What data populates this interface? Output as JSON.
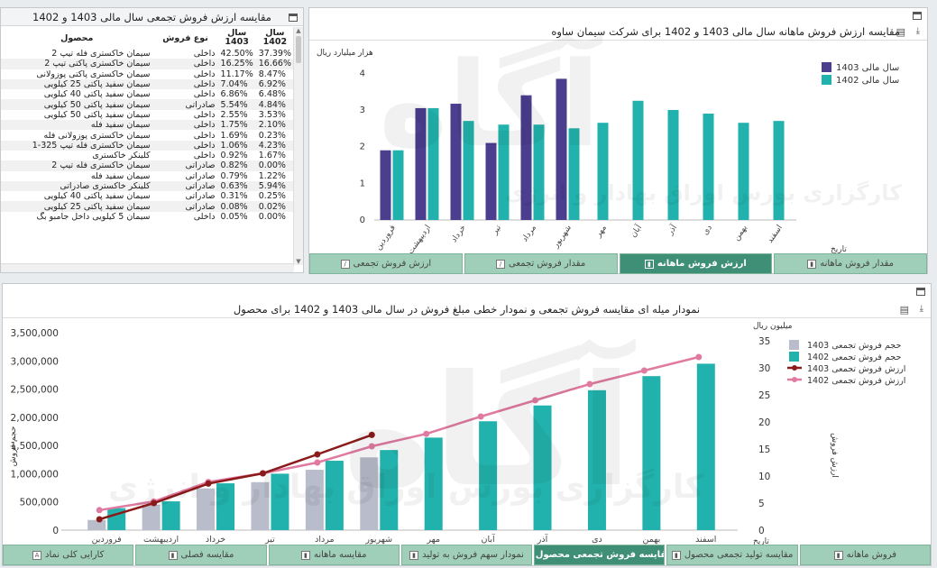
{
  "table_panel": {
    "title": "مقایسه ارزش فروش تجمعی سال مالی 1403 و 1402",
    "columns": {
      "product": "محصول",
      "sale_type": "نوع فروش",
      "year1403": "سال 1403",
      "year1402": "سال 1402"
    },
    "rows": [
      {
        "product": "سیمان خاکستری فله تیپ 2",
        "type": "داخلی",
        "v1403": "42.50%",
        "v1402": "37.39%"
      },
      {
        "product": "سیمان خاکستری پاکتی تیپ 2",
        "type": "داخلی",
        "v1403": "16.25%",
        "v1402": "16.66%"
      },
      {
        "product": "سیمان خاکستری پاکتی پوزولانی",
        "type": "داخلی",
        "v1403": "11.17%",
        "v1402": "8.47%"
      },
      {
        "product": "سیمان سفید پاکتی 25 کیلویی",
        "type": "داخلی",
        "v1403": "7.04%",
        "v1402": "6.92%"
      },
      {
        "product": "سیمان سفید پاکتی 40 کیلویی",
        "type": "داخلی",
        "v1403": "6.86%",
        "v1402": "6.48%"
      },
      {
        "product": "سیمان سفید پاکتی 50 کیلویی",
        "type": "صادراتی",
        "v1403": "5.54%",
        "v1402": "4.84%"
      },
      {
        "product": "سیمان سفید پاکتی 50 کیلویی",
        "type": "داخلی",
        "v1403": "2.55%",
        "v1402": "3.53%"
      },
      {
        "product": "سیمان سفید فله",
        "type": "داخلی",
        "v1403": "1.75%",
        "v1402": "2.10%"
      },
      {
        "product": "سیمان خاکستری پوزولانی فله",
        "type": "داخلی",
        "v1403": "1.69%",
        "v1402": "0.23%"
      },
      {
        "product": "سیمان خاکستری فله تیپ 325-1",
        "type": "داخلی",
        "v1403": "1.06%",
        "v1402": "4.23%"
      },
      {
        "product": "کلینکر خاکستری",
        "type": "داخلی",
        "v1403": "0.92%",
        "v1402": "1.67%"
      },
      {
        "product": "سیمان خاکستری فله تیپ 2",
        "type": "صادراتی",
        "v1403": "0.82%",
        "v1402": "0.00%"
      },
      {
        "product": "سیمان سفید فله",
        "type": "صادراتی",
        "v1403": "0.79%",
        "v1402": "1.22%"
      },
      {
        "product": "کلینکر خاکستری صادراتی",
        "type": "صادراتی",
        "v1403": "0.63%",
        "v1402": "5.94%"
      },
      {
        "product": "سیمان سفید پاکتی 40 کیلویی",
        "type": "صادراتی",
        "v1403": "0.31%",
        "v1402": "0.25%"
      },
      {
        "product": "سیمان سفید پاکتی 25 کیلویی",
        "type": "صادراتی",
        "v1403": "0.08%",
        "v1402": "0.02%"
      },
      {
        "product": "سیمان 5 کیلویی داخل جامبو بگ",
        "type": "داخلی",
        "v1403": "0.05%",
        "v1402": "0.00%"
      }
    ]
  },
  "top_chart": {
    "title": "مقایسه ارزش فروش ماهانه سال مالی 1403 و 1402 برای شرکت سیمان ساوه",
    "chart_data": {
      "type": "bar",
      "ylabel": "هزار میلیارد ریال",
      "xlabel": "تاریخ",
      "ylim": [
        0,
        4.4
      ],
      "yticks": [
        0,
        1,
        2,
        3,
        4
      ],
      "categories": [
        "فروردین",
        "اردیبهشت",
        "خرداد",
        "تیر",
        "مرداد",
        "شهریور",
        "مهر",
        "آبان",
        "آذر",
        "دی",
        "بهمن",
        "اسفند"
      ],
      "series": [
        {
          "name": "سال مالی 1403",
          "color": "#4b3e8f",
          "values": [
            1.9,
            3.05,
            3.17,
            2.1,
            3.4,
            3.85,
            null,
            null,
            null,
            null,
            null,
            null
          ]
        },
        {
          "name": "سال مالی 1402",
          "color": "#22b2ad",
          "values": [
            1.9,
            3.05,
            2.7,
            2.6,
            2.6,
            2.5,
            2.65,
            3.25,
            3.0,
            2.9,
            2.65,
            2.7
          ]
        }
      ],
      "legend": "top-right"
    }
  },
  "top_tabs": [
    {
      "label": "مقدار فروش ماهانه",
      "icon": "bar-chart-icon",
      "active": false
    },
    {
      "label": "ارزش فروش ماهانه",
      "icon": "bar-chart-icon",
      "active": true
    },
    {
      "label": "مقدار فروش تجمعی",
      "icon": "line-chart-icon",
      "active": false
    },
    {
      "label": "ارزش فروش تجمعی",
      "icon": "line-chart-icon",
      "active": false
    }
  ],
  "bottom_chart": {
    "title": "نمودار میله ای مقایسه فروش تجمعی و نمودار خطی مبلغ فروش در سال مالی 1403 و 1402 برای محصول",
    "chart_data": {
      "type": "bar",
      "categories": [
        "فروردین",
        "اردیبهشت",
        "خرداد",
        "تیر",
        "مرداد",
        "شهریور",
        "مهر",
        "آبان",
        "آذر",
        "دی",
        "بهمن",
        "اسفند"
      ],
      "xlabel": "تاریخ",
      "y_left": {
        "label": "حجم فروش",
        "ylim": [
          0,
          3500000
        ],
        "ticks": [
          "0",
          "500,000",
          "1,000,000",
          "1,500,000",
          "2,000,000",
          "2,500,000",
          "3,000,000",
          "3,500,000"
        ]
      },
      "y_right": {
        "label": "ارزش فروش",
        "unit": "میلیون ریال",
        "ylim": [
          0,
          36.5
        ],
        "ticks": [
          "0",
          "5",
          "10",
          "15",
          "20",
          "25",
          "30",
          "35"
        ]
      },
      "series": [
        {
          "name": "حجم فروش تجمعی 1403",
          "kind": "bar",
          "axis": "left",
          "color": "#b8bccb",
          "values": [
            180000,
            450000,
            740000,
            850000,
            1070000,
            1290000,
            null,
            null,
            null,
            null,
            null,
            null
          ]
        },
        {
          "name": "حجم فروش تجمعی 1402",
          "kind": "bar",
          "axis": "left",
          "color": "#22b2ad",
          "values": [
            390000,
            510000,
            830000,
            1000000,
            1230000,
            1420000,
            1640000,
            1930000,
            2210000,
            2480000,
            2730000,
            2950000
          ]
        },
        {
          "name": "ارزش فروش تجمعی 1403",
          "kind": "line",
          "axis": "right",
          "color": "#8b1a1a",
          "values": [
            2.0,
            5.0,
            8.6,
            10.5,
            14.0,
            17.6,
            null,
            null,
            null,
            null,
            null,
            null
          ]
        },
        {
          "name": "ارزش فروش تجمعی 1402",
          "kind": "line",
          "axis": "right",
          "color": "#e07aa0",
          "values": [
            3.7,
            5.3,
            8.9,
            10.5,
            12.5,
            15.5,
            17.8,
            21.0,
            24.0,
            27.0,
            29.5,
            32.0
          ]
        }
      ],
      "legend": "top-right"
    }
  },
  "bottom_tabs": [
    {
      "label": "فروش ماهانه",
      "icon": "chart-icon"
    },
    {
      "label": "مقایسه تولید تجمعی محصول",
      "icon": "chart-icon"
    },
    {
      "label": "مقایسه فروش تجمعی محصول",
      "icon": "bar-chart-icon",
      "active": true
    },
    {
      "label": "نمودار سهم فروش به تولید",
      "icon": "chart-icon"
    },
    {
      "label": "مقایسه ماهانه",
      "icon": "chart-icon"
    },
    {
      "label": "مقایسه فصلی",
      "icon": "chart-icon"
    },
    {
      "label": "کارایی کلی نماد",
      "icon": "report-icon"
    }
  ],
  "watermark": {
    "brand": "آگاه",
    "caption": "کارگزاری بورس اوراق بهادار و انرژی"
  }
}
